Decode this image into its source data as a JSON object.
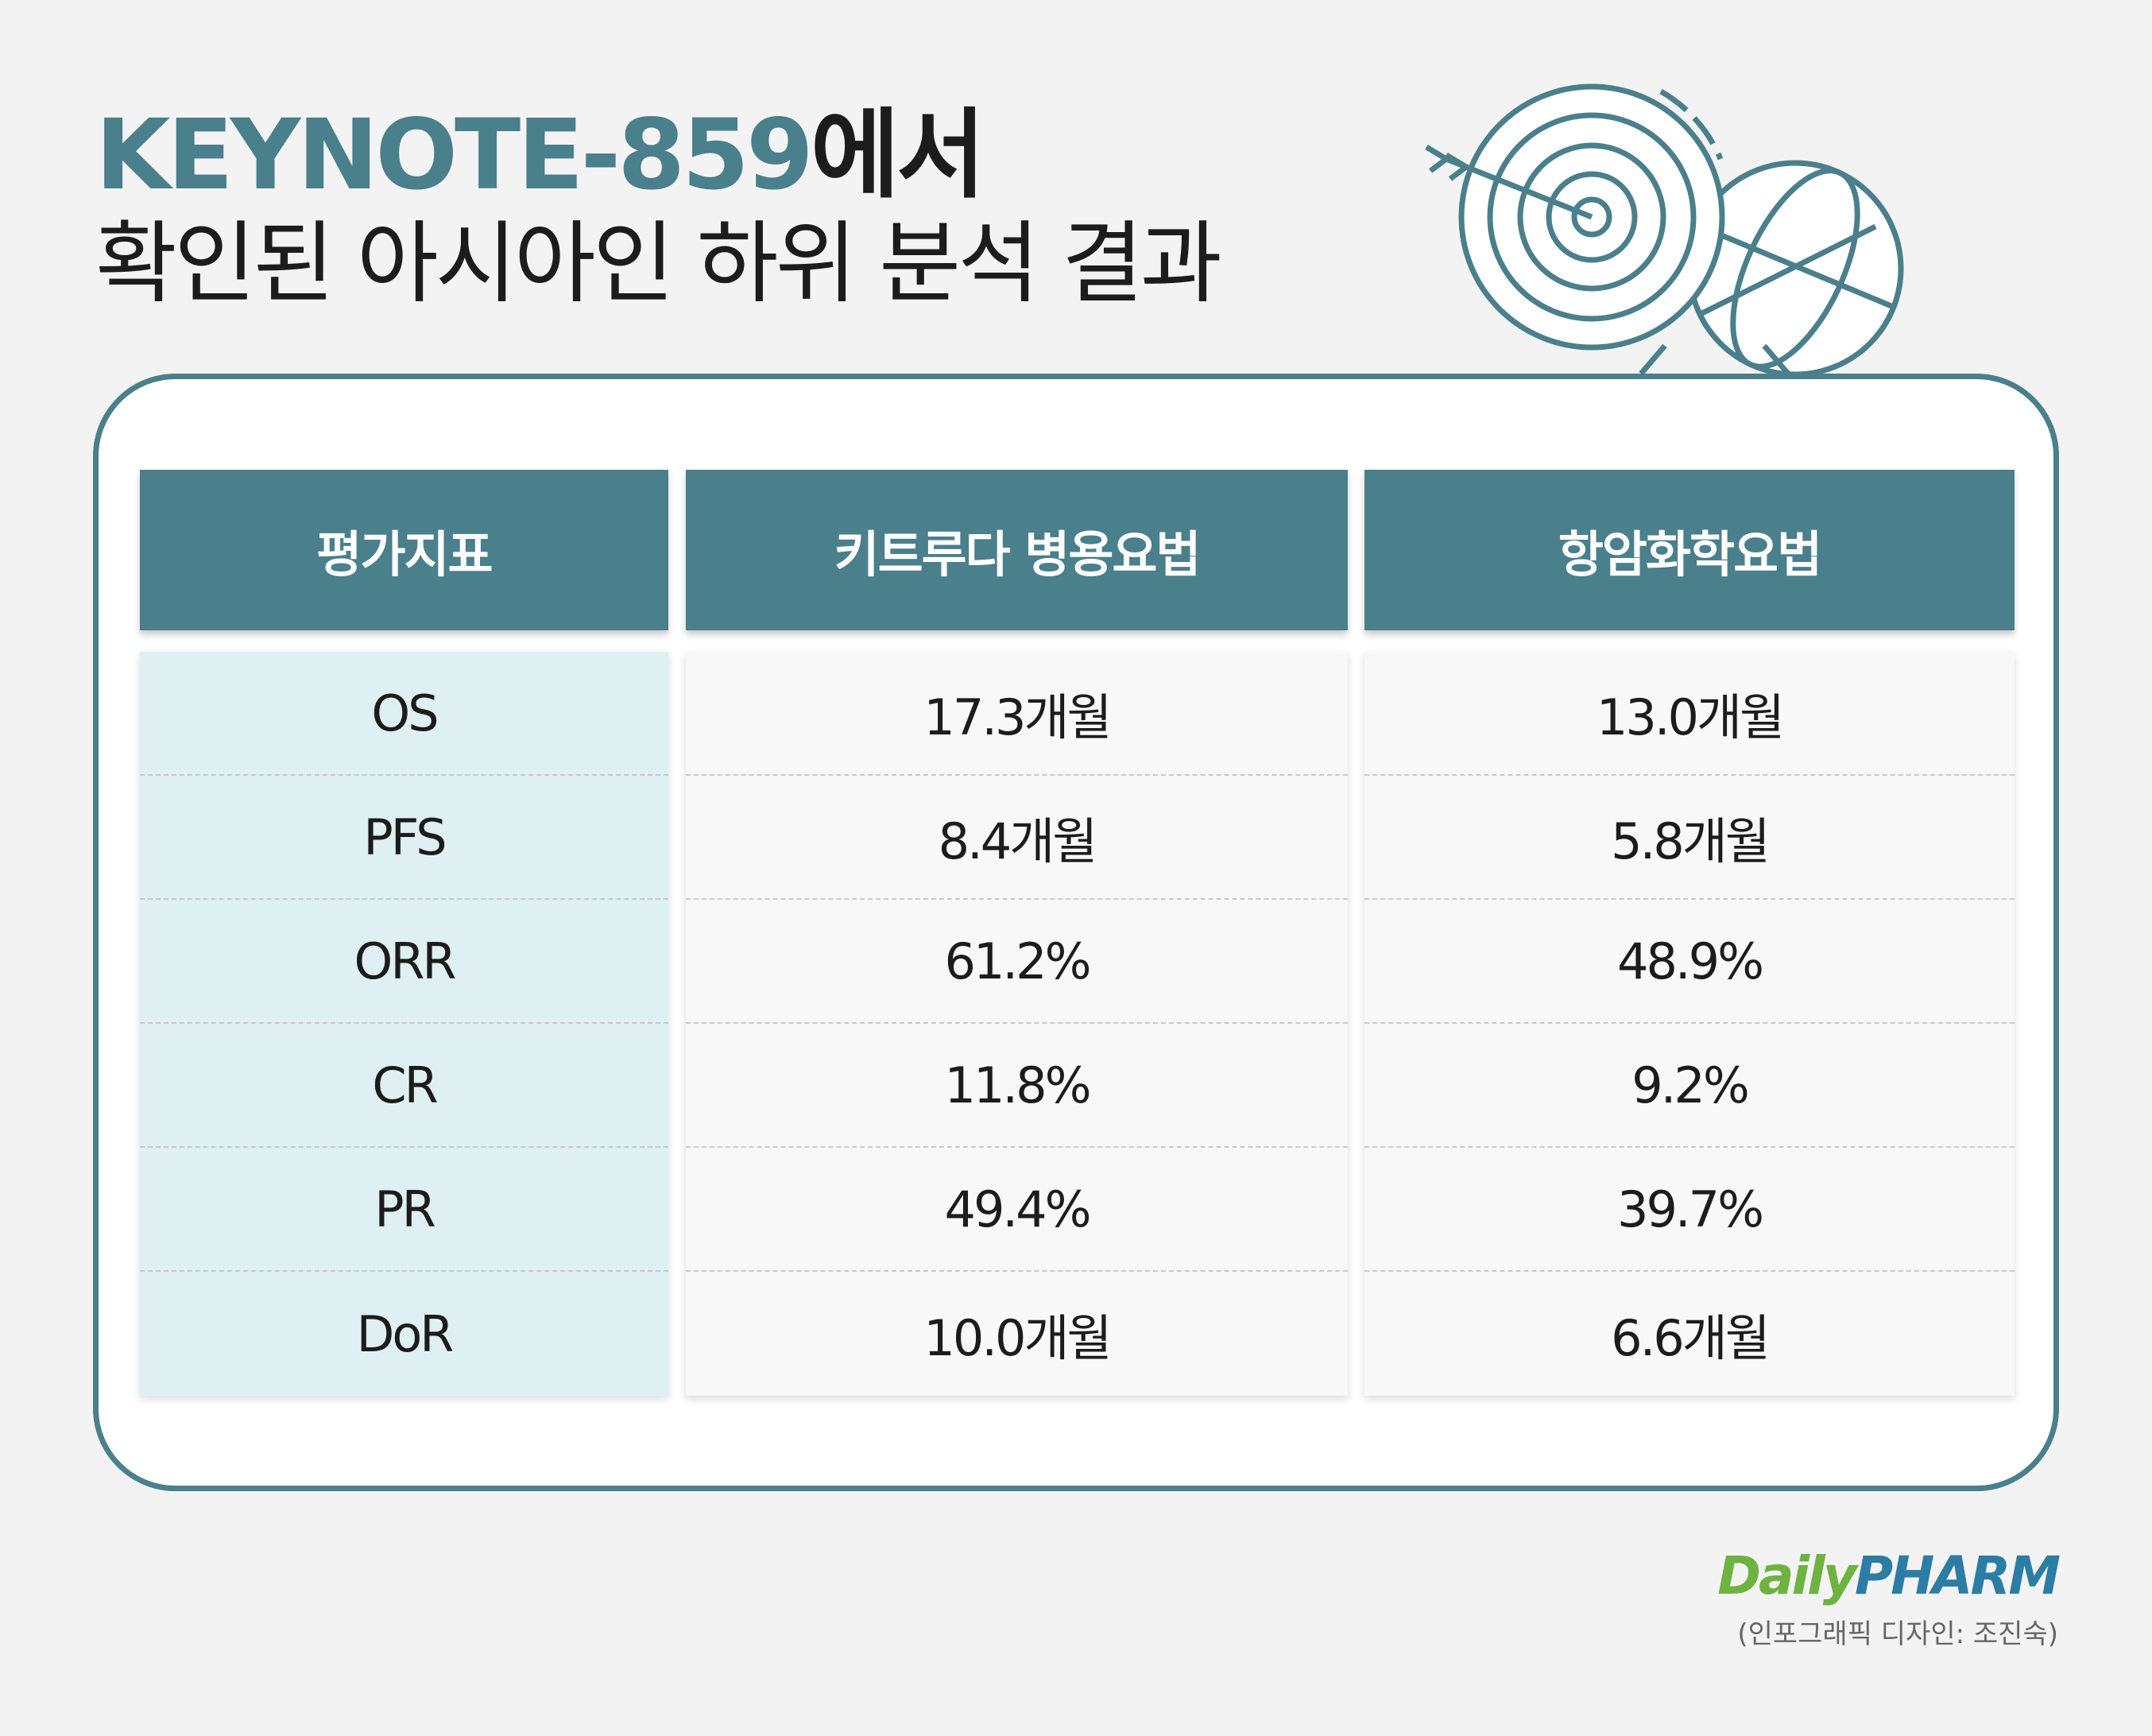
{
  "title": {
    "highlight": "KEYNOTE-859",
    "rest": "에서",
    "line2": "확인된 아시아인 하위 분석 결과"
  },
  "table": {
    "header": [
      "평가지표",
      "키트루다 병용요법",
      "항암화학요법"
    ],
    "rows": [
      [
        "OS",
        "17.3개월",
        "13.0개월"
      ],
      [
        "PFS",
        "8.4개월",
        "5.8개월"
      ],
      [
        "ORR",
        "61.2%",
        "48.9%"
      ],
      [
        "CR",
        "11.8%",
        "9.2%"
      ],
      [
        "PR",
        "49.4%",
        "39.7%"
      ],
      [
        "DoR",
        "10.0개월",
        "6.6개월"
      ]
    ]
  },
  "footer": {
    "logo_first": "Daily",
    "logo_second": "PHARM",
    "credit": "(인포그래픽 디자인: 조진숙)"
  }
}
